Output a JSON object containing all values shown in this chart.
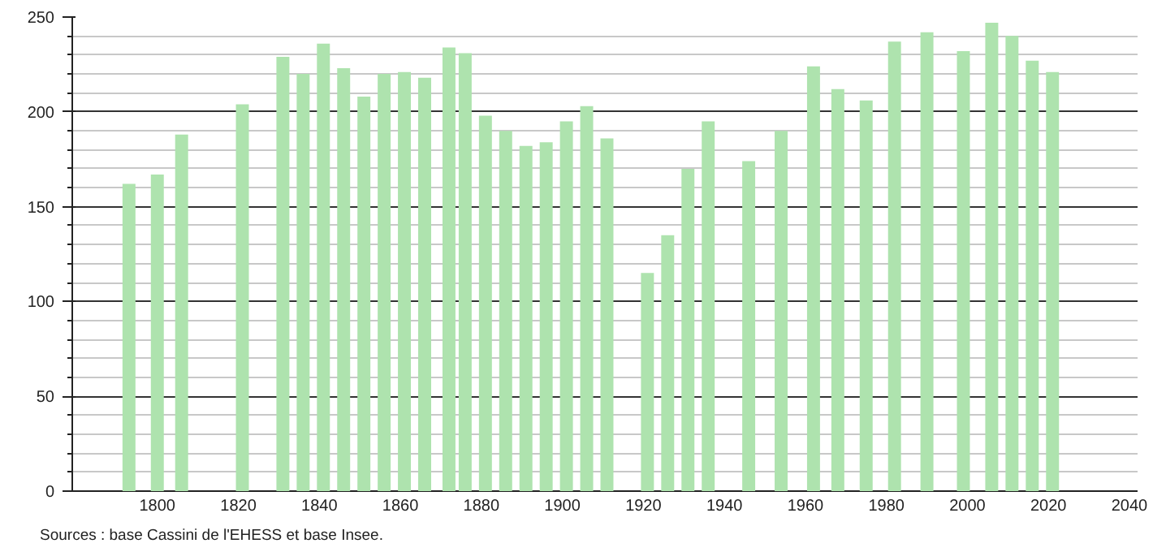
{
  "chart_data": {
    "type": "bar",
    "color": "#aee3ae",
    "x": [
      1793,
      1800,
      1806,
      1821,
      1831,
      1836,
      1841,
      1846,
      1851,
      1856,
      1861,
      1866,
      1872,
      1876,
      1881,
      1886,
      1891,
      1896,
      1901,
      1906,
      1911,
      1921,
      1926,
      1931,
      1936,
      1946,
      1954,
      1962,
      1968,
      1975,
      1982,
      1990,
      1999,
      2006,
      2011,
      2016,
      2021
    ],
    "values": [
      162,
      167,
      188,
      204,
      229,
      220,
      236,
      223,
      208,
      220,
      221,
      218,
      234,
      231,
      198,
      190,
      182,
      184,
      195,
      203,
      186,
      115,
      135,
      170,
      195,
      174,
      190,
      224,
      212,
      206,
      237,
      242,
      232,
      247,
      240,
      227,
      221
    ],
    "xlim": [
      1779,
      2042
    ],
    "xticks": [
      1800,
      1820,
      1840,
      1860,
      1880,
      1900,
      1920,
      1940,
      1960,
      1980,
      2000,
      2020,
      2040
    ],
    "ylim": [
      0,
      250
    ],
    "yticks": [
      0,
      50,
      100,
      150,
      200,
      250
    ],
    "grid": "y",
    "annotations": [
      "Sources : base Cassini de l'EHESS et base Insee."
    ]
  }
}
